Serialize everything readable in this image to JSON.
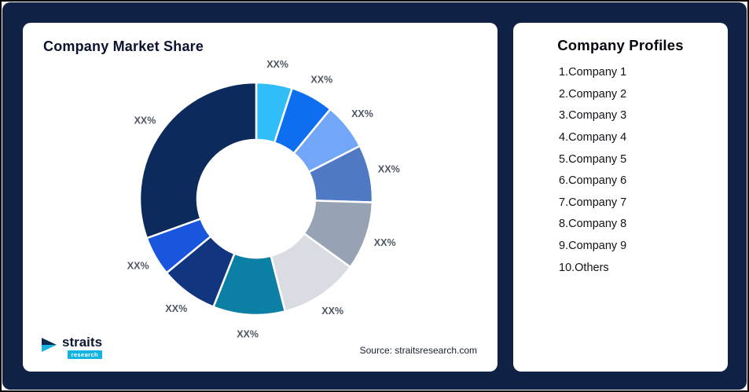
{
  "page": {
    "background": "#0f2145",
    "frame_border": "#060606"
  },
  "left_card": {
    "title": "Company Market Share",
    "source_note": "Source: straitsresearch.com"
  },
  "logo": {
    "text": "straits",
    "subtext": "research",
    "accent_color": "#14b3e0",
    "dark_color": "#0e2a52"
  },
  "right_card": {
    "title": "Company Profiles",
    "items": [
      "1.Company 1",
      "2.Company 2",
      "3.Company 3",
      "4.Company 4",
      "5.Company 5",
      "6.Company 6",
      "7.Company 7",
      "8.Company 8",
      "9.Company 9",
      "10.Others"
    ]
  },
  "chart_data": {
    "type": "pie",
    "donut": true,
    "inner_radius_ratio": 0.51,
    "title": "Company Market Share",
    "legend_position": "none",
    "start_angle_deg": -90,
    "direction": "clockwise",
    "note": "All slice data labels are placeholder text XX%; values are visual estimates of arc sizes in percent",
    "series": [
      {
        "name": "Company 1",
        "label": "XX%",
        "value": 5,
        "color": "#30bdf8"
      },
      {
        "name": "Company 2",
        "label": "XX%",
        "value": 6,
        "color": "#0d6ef0"
      },
      {
        "name": "Company 3",
        "label": "XX%",
        "value": 6.5,
        "color": "#72a6f7"
      },
      {
        "name": "Company 4",
        "label": "XX%",
        "value": 8,
        "color": "#5079c4"
      },
      {
        "name": "Company 5",
        "label": "XX%",
        "value": 9.5,
        "color": "#97a2b4"
      },
      {
        "name": "Company 6",
        "label": "XX%",
        "value": 11,
        "color": "#d9dde3"
      },
      {
        "name": "Company 7",
        "label": "XX%",
        "value": 10,
        "color": "#0c7fa5"
      },
      {
        "name": "Company 8",
        "label": "XX%",
        "value": 8,
        "color": "#11357f"
      },
      {
        "name": "Company 9",
        "label": "XX%",
        "value": 5.5,
        "color": "#1a56dd"
      },
      {
        "name": "Others",
        "label": "XX%",
        "value": 30.5,
        "color": "#0c2a5c"
      }
    ]
  }
}
